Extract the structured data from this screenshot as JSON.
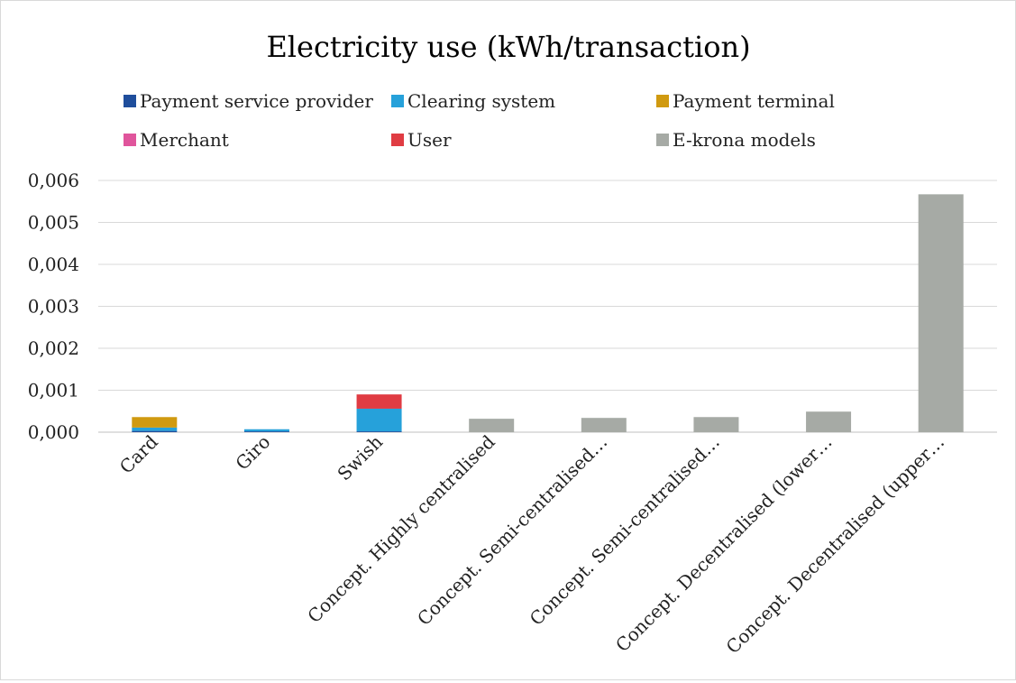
{
  "chart_data": {
    "type": "bar",
    "stacked": true,
    "title": "Electricity use (kWh/transaction)",
    "xlabel": "",
    "ylabel": "",
    "categories": [
      "Card",
      "Giro",
      "Swish",
      "Concept. Highly centralised",
      "Concept. Semi-centralised…",
      "Concept. Semi-centralised…",
      "Concept. Decentralised (lower…",
      "Concept. Decentralised (upper…"
    ],
    "series": [
      {
        "name": "Payment service provider",
        "color": "#1f4e9c",
        "values": [
          3e-05,
          2e-05,
          2e-05,
          0,
          0,
          0,
          0,
          0
        ]
      },
      {
        "name": "Clearing system",
        "color": "#26a1da",
        "values": [
          8e-05,
          5e-05,
          0.00054,
          0,
          0,
          0,
          0,
          0
        ]
      },
      {
        "name": "Payment terminal",
        "color": "#d09a10",
        "values": [
          0.00025,
          0,
          0,
          0,
          0,
          0,
          0,
          0
        ]
      },
      {
        "name": "Merchant",
        "color": "#e0559c",
        "values": [
          0,
          0,
          0,
          0,
          0,
          0,
          0,
          0
        ]
      },
      {
        "name": "User",
        "color": "#e03c43",
        "values": [
          0,
          0,
          0.00034,
          0,
          0,
          0,
          0,
          0
        ]
      },
      {
        "name": "E-krona models",
        "color": "#a6aaa5",
        "values": [
          0,
          0,
          0,
          0.00032,
          0.00034,
          0.00036,
          0.00049,
          0.00567
        ]
      }
    ],
    "yticks": [
      "0,000",
      "0,001",
      "0,002",
      "0,003",
      "0,004",
      "0,005",
      "0,006"
    ],
    "ylim": [
      0,
      0.006
    ],
    "grid": true,
    "legend_position": "top"
  }
}
